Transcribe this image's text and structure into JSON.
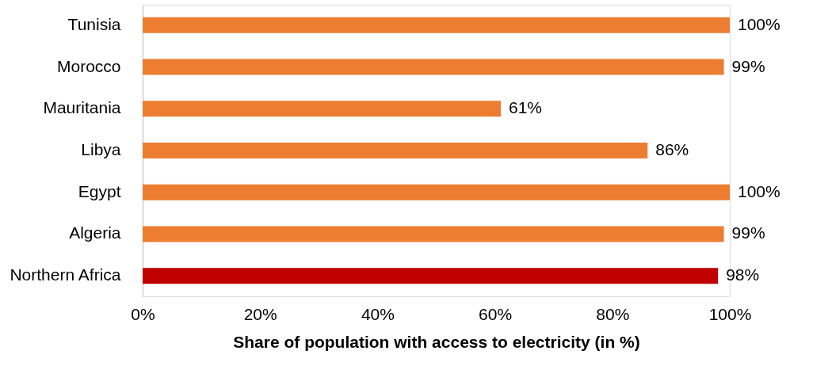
{
  "chart_data": {
    "type": "bar",
    "orientation": "horizontal",
    "categories": [
      "Tunisia",
      "Morocco",
      "Mauritania",
      "Libya",
      "Egypt",
      "Algeria",
      "Northern Africa"
    ],
    "values": [
      100,
      99,
      61,
      86,
      100,
      99,
      98
    ],
    "colors": [
      "#ed7d31",
      "#ed7d31",
      "#ed7d31",
      "#ed7d31",
      "#ed7d31",
      "#ed7d31",
      "#c00000"
    ],
    "value_labels": [
      "100%",
      "99%",
      "61%",
      "86%",
      "100%",
      "99%",
      "98%"
    ],
    "xlabel": "Share of population with access to electricity (in %)",
    "xlim": [
      0,
      100
    ],
    "xticks": [
      {
        "value": 0,
        "label": "0%"
      },
      {
        "value": 20,
        "label": "20%"
      },
      {
        "value": 40,
        "label": "40%"
      },
      {
        "value": 60,
        "label": "60%"
      },
      {
        "value": 80,
        "label": "80%"
      },
      {
        "value": 100,
        "label": "100%"
      }
    ],
    "grid": false
  }
}
